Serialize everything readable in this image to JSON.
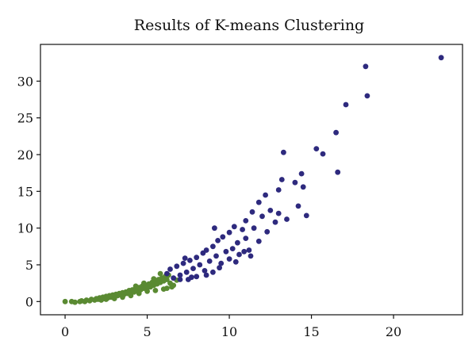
{
  "chart_data": {
    "type": "scatter",
    "title": "Results of K-means Clustering",
    "xlabel": "",
    "ylabel": "",
    "xlim": [
      -1.5,
      24.2
    ],
    "ylim": [
      -1.8,
      35
    ],
    "xticks": [
      0,
      5,
      10,
      15,
      20
    ],
    "yticks": [
      0,
      5,
      10,
      15,
      20,
      25,
      30
    ],
    "grid": false,
    "legend": "none",
    "series": [
      {
        "color": "#5a8a32",
        "points": [
          [
            0,
            0
          ],
          [
            0.4,
            0
          ],
          [
            0.6,
            -0.1
          ],
          [
            0.9,
            0
          ],
          [
            1.0,
            0.1
          ],
          [
            1.2,
            0
          ],
          [
            1.3,
            0.2
          ],
          [
            1.5,
            0.1
          ],
          [
            1.6,
            0.3
          ],
          [
            1.8,
            0.2
          ],
          [
            1.9,
            0.4
          ],
          [
            2.0,
            0.3
          ],
          [
            2.1,
            0.5
          ],
          [
            2.2,
            0.2
          ],
          [
            2.3,
            0.6
          ],
          [
            2.4,
            0.4
          ],
          [
            2.5,
            0.7
          ],
          [
            2.6,
            0.5
          ],
          [
            2.7,
            0.8
          ],
          [
            2.8,
            0.6
          ],
          [
            2.9,
            0.9
          ],
          [
            3.0,
            0.7
          ],
          [
            3.1,
            1.0
          ],
          [
            3.2,
            0.8
          ],
          [
            3.3,
            1.1
          ],
          [
            3.4,
            0.9
          ],
          [
            3.5,
            1.2
          ],
          [
            3.6,
            1.0
          ],
          [
            3.7,
            1.3
          ],
          [
            3.8,
            1.1
          ],
          [
            3.9,
            1.5
          ],
          [
            4.0,
            1.2
          ],
          [
            4.1,
            1.6
          ],
          [
            4.2,
            1.3
          ],
          [
            4.3,
            1.8
          ],
          [
            4.4,
            1.5
          ],
          [
            4.5,
            1.9
          ],
          [
            4.6,
            1.6
          ],
          [
            4.7,
            2.1
          ],
          [
            4.8,
            1.8
          ],
          [
            4.9,
            2.2
          ],
          [
            5.0,
            1.9
          ],
          [
            5.1,
            2.4
          ],
          [
            5.2,
            2.0
          ],
          [
            5.3,
            2.6
          ],
          [
            5.4,
            2.2
          ],
          [
            5.5,
            2.8
          ],
          [
            5.6,
            2.4
          ],
          [
            5.7,
            3.0
          ],
          [
            5.8,
            2.6
          ],
          [
            5.9,
            3.2
          ],
          [
            6.0,
            2.8
          ],
          [
            6.1,
            3.4
          ],
          [
            6.2,
            3.0
          ],
          [
            6.3,
            3.6
          ],
          [
            6.4,
            2.5
          ],
          [
            6.5,
            2.0
          ],
          [
            6.0,
            1.7
          ],
          [
            5.5,
            1.5
          ],
          [
            5.0,
            1.4
          ],
          [
            4.5,
            1.1
          ],
          [
            4.0,
            0.8
          ],
          [
            3.5,
            0.6
          ],
          [
            3.0,
            0.4
          ],
          [
            2.5,
            0.3
          ],
          [
            6.2,
            1.8
          ],
          [
            6.6,
            2.2
          ],
          [
            6.8,
            2.9
          ],
          [
            5.8,
            3.8
          ],
          [
            5.4,
            3.1
          ],
          [
            4.8,
            2.5
          ],
          [
            4.3,
            2.1
          ]
        ]
      },
      {
        "color": "#2e2a7e",
        "points": [
          [
            6.2,
            3.8
          ],
          [
            6.4,
            4.4
          ],
          [
            6.6,
            3.2
          ],
          [
            6.8,
            4.8
          ],
          [
            7.0,
            3.6
          ],
          [
            7.2,
            5.2
          ],
          [
            7.4,
            4.0
          ],
          [
            7.5,
            3.0
          ],
          [
            7.6,
            5.6
          ],
          [
            7.8,
            4.5
          ],
          [
            8.0,
            6.0
          ],
          [
            8.0,
            3.4
          ],
          [
            8.2,
            5.0
          ],
          [
            8.4,
            6.6
          ],
          [
            8.5,
            4.2
          ],
          [
            8.6,
            7.0
          ],
          [
            8.8,
            5.5
          ],
          [
            9.0,
            7.5
          ],
          [
            9.0,
            4.0
          ],
          [
            9.2,
            6.2
          ],
          [
            9.3,
            8.3
          ],
          [
            9.5,
            5.2
          ],
          [
            9.6,
            8.8
          ],
          [
            9.8,
            6.8
          ],
          [
            10.0,
            9.4
          ],
          [
            10.0,
            5.8
          ],
          [
            10.2,
            7.2
          ],
          [
            10.3,
            10.2
          ],
          [
            10.5,
            8.0
          ],
          [
            10.6,
            6.4
          ],
          [
            10.8,
            9.8
          ],
          [
            11.0,
            8.6
          ],
          [
            11.0,
            11.0
          ],
          [
            11.2,
            7.0
          ],
          [
            11.4,
            12.2
          ],
          [
            11.5,
            10.0
          ],
          [
            11.8,
            13.5
          ],
          [
            11.8,
            8.2
          ],
          [
            12.0,
            11.6
          ],
          [
            12.2,
            14.5
          ],
          [
            12.3,
            9.5
          ],
          [
            12.5,
            12.4
          ],
          [
            12.8,
            10.8
          ],
          [
            13.0,
            15.2
          ],
          [
            13.0,
            12.0
          ],
          [
            13.2,
            16.6
          ],
          [
            13.3,
            20.3
          ],
          [
            13.5,
            11.2
          ],
          [
            14.0,
            16.2
          ],
          [
            14.2,
            13.0
          ],
          [
            14.4,
            17.4
          ],
          [
            14.5,
            15.6
          ],
          [
            14.7,
            11.7
          ],
          [
            15.3,
            20.8
          ],
          [
            15.7,
            20.1
          ],
          [
            16.5,
            23.0
          ],
          [
            16.6,
            17.6
          ],
          [
            17.1,
            26.8
          ],
          [
            18.3,
            32.0
          ],
          [
            18.4,
            28.0
          ],
          [
            22.9,
            33.2
          ],
          [
            7.0,
            3.0
          ],
          [
            7.7,
            3.3
          ],
          [
            8.6,
            3.6
          ],
          [
            9.4,
            4.6
          ],
          [
            10.4,
            5.4
          ],
          [
            11.3,
            6.2
          ],
          [
            7.3,
            5.9
          ],
          [
            9.1,
            10.0
          ],
          [
            10.9,
            6.8
          ]
        ]
      }
    ]
  }
}
